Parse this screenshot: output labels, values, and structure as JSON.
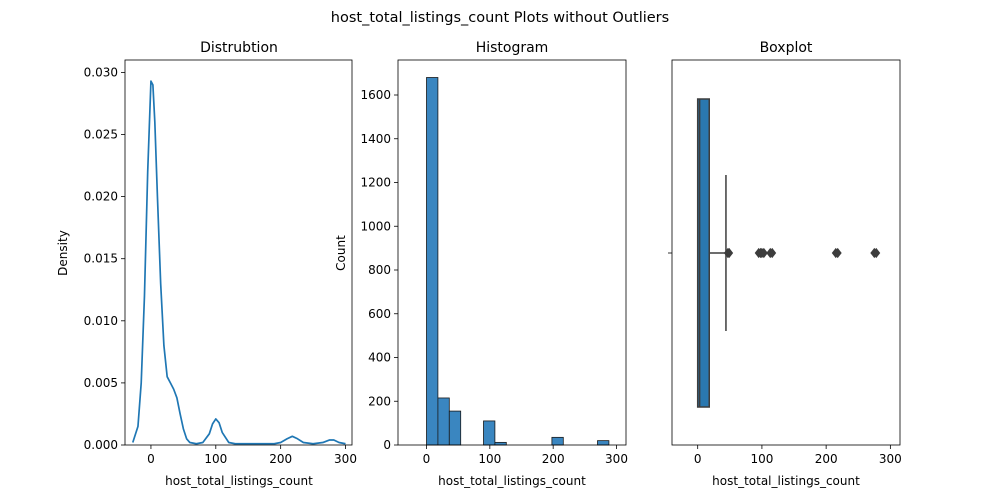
{
  "figure": {
    "suptitle": "host_total_listings_count Plots without Outliers",
    "colors": {
      "line": "#1f77b4",
      "fill": "#3a86c0",
      "box": "#2a78b0",
      "dark": "#3d3d3d"
    }
  },
  "chart_data": [
    {
      "type": "line",
      "title": "Distrubtion",
      "xlabel": "host_total_listings_count",
      "ylabel": "Density",
      "xlim": [
        -40,
        310
      ],
      "ylim": [
        0,
        0.031
      ],
      "xticks": [
        0,
        100,
        200,
        300
      ],
      "yticks": [
        0.0,
        0.005,
        0.01,
        0.015,
        0.02,
        0.025,
        0.03
      ],
      "ytick_labels": [
        "0.000",
        "0.005",
        "0.010",
        "0.015",
        "0.020",
        "0.025",
        "0.030"
      ],
      "x": [
        -28,
        -20,
        -15,
        -10,
        -5,
        0,
        3,
        6,
        10,
        15,
        20,
        25,
        30,
        35,
        40,
        45,
        50,
        55,
        60,
        70,
        80,
        90,
        95,
        100,
        105,
        110,
        120,
        130,
        150,
        170,
        190,
        200,
        210,
        218,
        226,
        235,
        250,
        265,
        275,
        282,
        290,
        300
      ],
      "y": [
        0.0002,
        0.0015,
        0.005,
        0.012,
        0.022,
        0.0293,
        0.029,
        0.026,
        0.02,
        0.013,
        0.008,
        0.0055,
        0.005,
        0.0045,
        0.0038,
        0.0025,
        0.0013,
        0.0005,
        0.0002,
        0.0001,
        0.0002,
        0.0009,
        0.0017,
        0.0021,
        0.0018,
        0.001,
        0.0002,
        0.0001,
        0.0001,
        0.0001,
        0.0001,
        0.0002,
        0.0005,
        0.0007,
        0.0005,
        0.0002,
        0.0001,
        0.0002,
        0.0004,
        0.0004,
        0.0002,
        0.0001
      ]
    },
    {
      "type": "bar",
      "title": "Histogram",
      "xlabel": "host_total_listings_count",
      "ylabel": "Count",
      "xlim": [
        -45,
        315
      ],
      "ylim": [
        0,
        1760
      ],
      "xticks": [
        0,
        100,
        200,
        300
      ],
      "yticks": [
        0,
        200,
        400,
        600,
        800,
        1000,
        1200,
        1400,
        1600
      ],
      "bin_width": 18,
      "bin_starts": [
        0,
        18,
        36,
        54,
        72,
        90,
        108,
        126,
        144,
        162,
        180,
        198,
        216,
        234,
        252,
        270
      ],
      "values": [
        1680,
        215,
        155,
        0,
        0,
        110,
        12,
        0,
        0,
        0,
        0,
        35,
        0,
        0,
        0,
        20
      ]
    },
    {
      "type": "box",
      "title": "Boxplot",
      "xlabel": "host_total_listings_count",
      "xlim": [
        -40,
        315
      ],
      "xticks": [
        0,
        100,
        200,
        300
      ],
      "q1": 0,
      "median": 3,
      "q3": 18,
      "whisker_low": 0,
      "whisker_high": 44,
      "outliers": [
        47,
        49,
        95,
        98,
        100,
        103,
        113,
        116,
        215,
        218,
        275,
        278
      ]
    }
  ]
}
